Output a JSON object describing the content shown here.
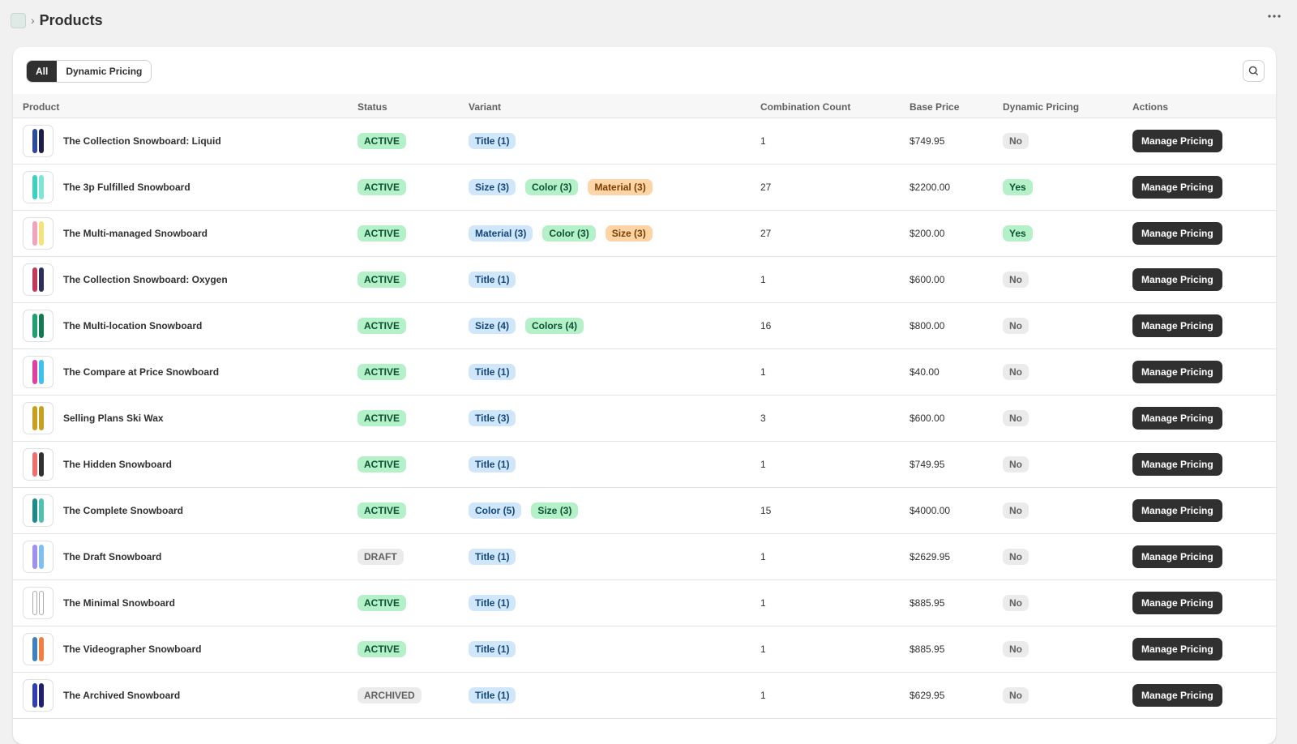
{
  "header": {
    "title": "Products"
  },
  "tabs": [
    "All",
    "Dynamic Pricing"
  ],
  "table": {
    "columns": [
      "Product",
      "Status",
      "Variant",
      "Combination Count",
      "Base Price",
      "Dynamic Pricing",
      "Actions"
    ],
    "rows": [
      {
        "product": "The Collection Snowboard: Liquid",
        "status": "ACTIVE",
        "status_color": "#b4f0c8",
        "variants": [
          "Title (1)"
        ],
        "count": 1,
        "price": "$749.95",
        "dynamic": "No",
        "dynamic_color": "#ebebeb",
        "action": "Manage Pricing"
      },
      {
        "product": "The 3p Fulfilled Snowboard",
        "status": "ACTIVE",
        "status_color": "#b4f0c8",
        "variants": [
          "Size (3)",
          "Color (3)",
          "Material (3)"
        ],
        "count": 27,
        "price": "$2200.00",
        "dynamic": "Yes",
        "dynamic_color": "#b4f0c8",
        "action": "Manage Pricing"
      },
      {
        "product": "The Multi-managed Snowboard",
        "status": "ACTIVE",
        "status_color": "#b4f0c8",
        "variants": [
          "Material (3)",
          "Color (3)",
          "Size (3)"
        ],
        "count": 27,
        "price": "$200.00",
        "dynamic": "Yes",
        "dynamic_color": "#b4f0c8",
        "action": "Manage Pricing"
      },
      {
        "product": "The Collection Snowboard: Oxygen",
        "status": "ACTIVE",
        "status_color": "#b4f0c8",
        "variants": [
          "Title (1)"
        ],
        "count": 1,
        "price": "$600.00",
        "dynamic": "No",
        "dynamic_color": "#ebebeb",
        "action": "Manage Pricing"
      },
      {
        "product": "The Multi-location Snowboard",
        "status": "ACTIVE",
        "status_color": "#b4f0c8",
        "variants": [
          "Size (4)",
          "Colors (4)"
        ],
        "count": 16,
        "price": "$800.00",
        "dynamic": "No",
        "dynamic_color": "#ebebeb",
        "action": "Manage Pricing"
      },
      {
        "product": "The Compare at Price Snowboard",
        "status": "ACTIVE",
        "status_color": "#b4f0c8",
        "variants": [
          "Title (1)"
        ],
        "count": 1,
        "price": "$40.00",
        "dynamic": "No",
        "dynamic_color": "#ebebeb",
        "action": "Manage Pricing"
      },
      {
        "product": "Selling Plans Ski Wax",
        "status": "ACTIVE",
        "status_color": "#b4f0c8",
        "variants": [
          "Title (3)"
        ],
        "count": 3,
        "price": "$600.00",
        "dynamic": "No",
        "dynamic_color": "#ebebeb",
        "action": "Manage Pricing"
      },
      {
        "product": "The Hidden Snowboard",
        "status": "ACTIVE",
        "status_color": "#b4f0c8",
        "variants": [
          "Title (1)"
        ],
        "count": 1,
        "price": "$749.95",
        "dynamic": "No",
        "dynamic_color": "#ebebeb",
        "action": "Manage Pricing"
      },
      {
        "product": "The Complete Snowboard",
        "status": "ACTIVE",
        "status_color": "#b4f0c8",
        "variants": [
          "Color (5)",
          "Size (3)"
        ],
        "count": 15,
        "price": "$4000.00",
        "dynamic": "No",
        "dynamic_color": "#ebebeb",
        "action": "Manage Pricing"
      },
      {
        "product": "The Draft Snowboard",
        "status": "DRAFT",
        "status_color": "#ebebeb",
        "variants": [
          "Title (1)"
        ],
        "count": 1,
        "price": "$2629.95",
        "dynamic": "No",
        "dynamic_color": "#ebebeb",
        "action": "Manage Pricing"
      },
      {
        "product": "The Minimal Snowboard",
        "status": "ACTIVE",
        "status_color": "#b4f0c8",
        "variants": [
          "Title (1)"
        ],
        "count": 1,
        "price": "$885.95",
        "dynamic": "No",
        "dynamic_color": "#ebebeb",
        "action": "Manage Pricing"
      },
      {
        "product": "The Videographer Snowboard",
        "status": "ACTIVE",
        "status_color": "#b4f0c8",
        "variants": [
          "Title (1)"
        ],
        "count": 1,
        "price": "$885.95",
        "dynamic": "No",
        "dynamic_color": "#ebebeb",
        "action": "Manage Pricing"
      },
      {
        "product": "The Archived Snowboard",
        "status": "ARCHIVED",
        "status_color": "#ebebeb",
        "variants": [
          "Title (1)"
        ],
        "count": 1,
        "price": "$629.95",
        "dynamic": "No",
        "dynamic_color": "#ebebeb",
        "action": "Manage Pricing"
      }
    ]
  }
}
